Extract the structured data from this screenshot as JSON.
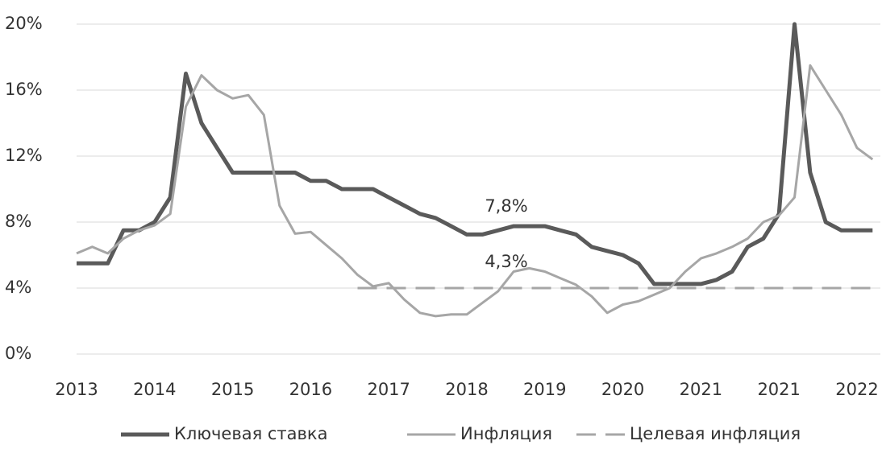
{
  "chart_data": {
    "type": "line",
    "annotations": [
      "7,8%",
      "4,3%"
    ],
    "x": [
      0,
      0.2,
      0.4,
      0.6,
      0.8,
      1.0,
      1.2,
      1.4,
      1.6,
      1.8,
      2.0,
      2.2,
      2.4,
      2.6,
      2.8,
      3.0,
      3.2,
      3.4,
      3.6,
      3.8,
      4.0,
      4.2,
      4.4,
      4.6,
      4.8,
      5.0,
      5.2,
      5.4,
      5.6,
      5.8,
      6.0,
      6.2,
      6.4,
      6.6,
      6.8,
      7.0,
      7.2,
      7.4,
      7.6,
      7.8,
      8.0,
      8.2,
      8.4,
      8.6,
      8.8,
      9.0,
      9.2,
      9.4,
      9.6,
      9.8,
      10.0,
      10.2
    ],
    "series": [
      {
        "name": "Ключевая ставка",
        "color": "#5a5a5a",
        "width": 5,
        "dash": false,
        "values": [
          5.5,
          5.5,
          5.5,
          7.5,
          7.5,
          8,
          9.5,
          17,
          14,
          12.5,
          11,
          11,
          11,
          11,
          11,
          10.5,
          10.5,
          10,
          10,
          10,
          9.5,
          9,
          8.5,
          8.25,
          7.75,
          7.25,
          7.25,
          7.5,
          7.75,
          7.75,
          7.75,
          7.5,
          7.25,
          6.5,
          6.25,
          6,
          5.5,
          4.25,
          4.25,
          4.25,
          4.25,
          4.5,
          5,
          6.5,
          7,
          8.5,
          20,
          11,
          8,
          7.5,
          7.5,
          7.5
        ]
      },
      {
        "name": "Инфляция",
        "color": "#a6a6a6",
        "width": 3,
        "dash": false,
        "values": [
          6.1,
          6.5,
          6.1,
          7.0,
          7.5,
          7.8,
          8.5,
          15,
          16.9,
          16,
          15.5,
          15.7,
          14.5,
          9,
          7.3,
          7.4,
          6.6,
          5.8,
          4.8,
          4.1,
          4.3,
          3.3,
          2.5,
          2.3,
          2.4,
          2.4,
          3.1,
          3.8,
          5,
          5.2,
          5.0,
          4.6,
          4.2,
          3.5,
          2.5,
          3.0,
          3.2,
          3.6,
          4,
          5,
          5.8,
          6.1,
          6.5,
          7.0,
          8.0,
          8.4,
          9.5,
          17.5,
          16,
          14.5,
          12.5,
          11.8
        ]
      },
      {
        "name": "Целевая инфляция",
        "color": "#a6a6a6",
        "width": 3,
        "dash": true,
        "values": [
          null,
          null,
          null,
          null,
          null,
          null,
          null,
          null,
          null,
          null,
          null,
          null,
          null,
          null,
          null,
          null,
          null,
          null,
          4,
          4,
          4,
          4,
          4,
          4,
          4,
          4,
          4,
          4,
          4,
          4,
          4,
          4,
          4,
          4,
          4,
          4,
          4,
          4,
          4,
          4,
          4,
          4,
          4,
          4,
          4,
          4,
          4,
          4,
          4,
          4,
          4,
          4
        ]
      }
    ],
    "xlim": [
      0,
      10.3
    ],
    "xticks": [
      {
        "value": 0,
        "label": "2013"
      },
      {
        "value": 1,
        "label": "2014"
      },
      {
        "value": 2,
        "label": "2015"
      },
      {
        "value": 3,
        "label": "2016"
      },
      {
        "value": 4,
        "label": "2017"
      },
      {
        "value": 5,
        "label": "2018"
      },
      {
        "value": 6,
        "label": "2019"
      },
      {
        "value": 7,
        "label": "2020"
      },
      {
        "value": 8,
        "label": "2021"
      },
      {
        "value": 9,
        "label": "2021"
      },
      {
        "value": 10,
        "label": "2022"
      }
    ],
    "ylim": [
      0,
      20
    ],
    "yticks": [
      {
        "value": 0,
        "label": "0%"
      },
      {
        "value": 4,
        "label": "4%"
      },
      {
        "value": 8,
        "label": "8%"
      },
      {
        "value": 12,
        "label": "12%"
      },
      {
        "value": 16,
        "label": "16%"
      },
      {
        "value": 20,
        "label": "20%"
      }
    ],
    "grid": true,
    "legend": "bottom"
  }
}
